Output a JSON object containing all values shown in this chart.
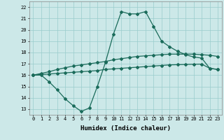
{
  "xlabel": "Humidex (Indice chaleur)",
  "bg_color": "#cce8e8",
  "line_color": "#1a6b5a",
  "grid_color": "#99cccc",
  "xlim": [
    -0.5,
    23.5
  ],
  "ylim": [
    12.5,
    22.5
  ],
  "line1_x": [
    0,
    1,
    2,
    3,
    4,
    5,
    6,
    7,
    8,
    9,
    10,
    11,
    12,
    13,
    14,
    15,
    16,
    17,
    18,
    19,
    20,
    21,
    22,
    23
  ],
  "line1_y": [
    16.0,
    16.0,
    15.4,
    14.7,
    13.9,
    13.3,
    12.8,
    13.1,
    15.0,
    17.1,
    19.6,
    21.6,
    21.4,
    21.4,
    21.6,
    20.3,
    19.0,
    18.5,
    18.1,
    17.8,
    17.6,
    17.5,
    16.6,
    16.5
  ],
  "line2_x": [
    0,
    1,
    2,
    3,
    4,
    5,
    6,
    7,
    8,
    9,
    10,
    11,
    12,
    13,
    14,
    15,
    16,
    17,
    18,
    19,
    20,
    21,
    22,
    23
  ],
  "line2_y": [
    16.0,
    16.15,
    16.3,
    16.5,
    16.65,
    16.8,
    16.9,
    17.0,
    17.1,
    17.2,
    17.35,
    17.45,
    17.55,
    17.65,
    17.7,
    17.75,
    17.8,
    17.85,
    17.85,
    17.85,
    17.85,
    17.8,
    17.75,
    17.65
  ],
  "line3_x": [
    0,
    1,
    2,
    3,
    4,
    5,
    6,
    7,
    8,
    9,
    10,
    11,
    12,
    13,
    14,
    15,
    16,
    17,
    18,
    19,
    20,
    21,
    22,
    23
  ],
  "line3_y": [
    16.0,
    16.05,
    16.1,
    16.15,
    16.2,
    16.25,
    16.3,
    16.35,
    16.4,
    16.5,
    16.55,
    16.6,
    16.65,
    16.7,
    16.75,
    16.8,
    16.85,
    16.9,
    16.92,
    16.94,
    16.96,
    16.97,
    16.6,
    16.5
  ]
}
